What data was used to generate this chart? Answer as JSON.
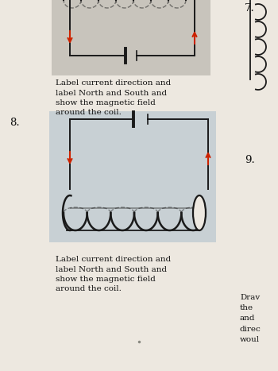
{
  "page_bg": "#ede8e0",
  "top_bg": "#c8c4bc",
  "problem8_bg": "#c8d0d4",
  "lc": "#1a1a1a",
  "ac": "#cc2200",
  "cc": "#1a1a1a",
  "instruction_text_top": "Label current direction and\nlabel North and South and\nshow the magnetic field\naround the coil.",
  "instruction_text_8": "Label current direction and\nlabel North and South and\nshow the magnetic field\naround the coil.",
  "right_partial": "Drav\nthe\nand\ndirec\nwoul",
  "font_size_instr": 7.5,
  "font_size_num": 9.5
}
